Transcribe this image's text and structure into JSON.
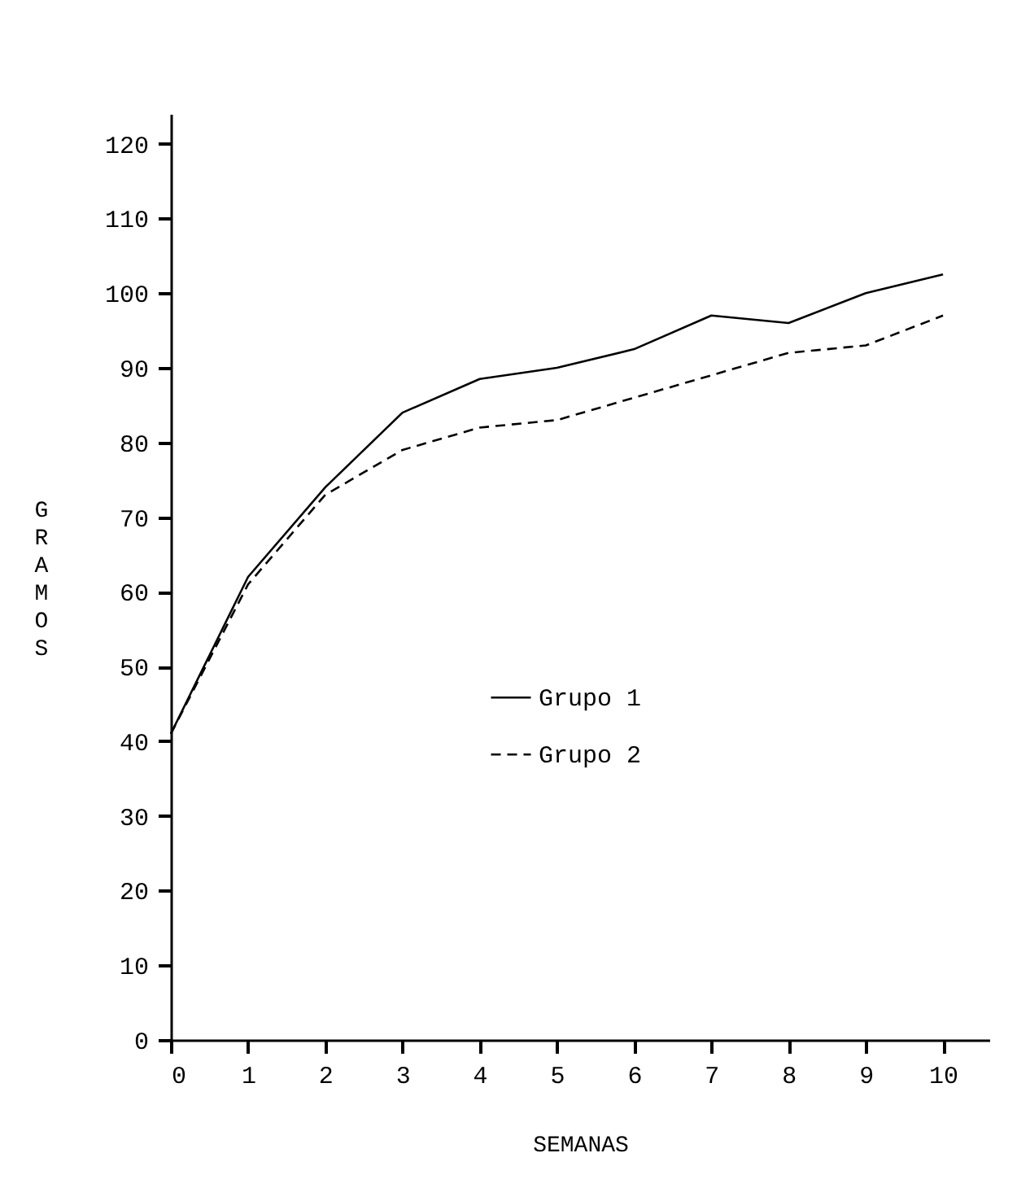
{
  "chart_data": {
    "type": "line",
    "xlabel": "SEMANAS",
    "ylabel": "GRAMOS",
    "x": [
      0,
      1,
      2,
      3,
      4,
      5,
      6,
      7,
      8,
      9,
      10
    ],
    "series": [
      {
        "name": "Grupo 1",
        "color": "#000000",
        "line_style": "solid",
        "values": [
          41,
          62,
          74,
          84,
          88.5,
          90,
          92.5,
          97,
          96,
          100,
          102.5
        ]
      },
      {
        "name": "Grupo 2",
        "color": "#000000",
        "line_style": "dashed",
        "values": [
          41,
          61,
          73,
          79,
          82,
          83,
          86,
          89,
          92,
          93,
          97
        ]
      }
    ],
    "xlim": [
      0,
      10.6
    ],
    "xticks": [
      0,
      1,
      2,
      3,
      4,
      5,
      6,
      7,
      8,
      9,
      10
    ],
    "ylim": [
      0,
      124
    ],
    "yticks": [
      0,
      10,
      20,
      30,
      40,
      50,
      60,
      70,
      80,
      90,
      100,
      110,
      120
    ],
    "grid": false,
    "legend": "right",
    "marker": "none"
  }
}
